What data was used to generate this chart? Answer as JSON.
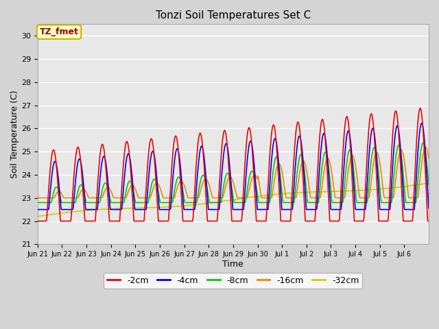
{
  "title": "Tonzi Soil Temperatures Set C",
  "xlabel": "Time",
  "ylabel": "Soil Temperature (C)",
  "ylim": [
    21.0,
    30.5
  ],
  "yticks": [
    21.0,
    22.0,
    23.0,
    24.0,
    25.0,
    26.0,
    27.0,
    28.0,
    29.0,
    30.0
  ],
  "annotation_text": "TZ_fmet",
  "annotation_bg": "#ffffcc",
  "annotation_border": "#bbbb00",
  "annotation_fg": "#990000",
  "legend_items": [
    "-2cm",
    "-4cm",
    "-8cm",
    "-16cm",
    "-32cm"
  ],
  "line_colors": [
    "#ee0000",
    "#0000ee",
    "#00cc00",
    "#ee8800",
    "#cccc00"
  ],
  "xtick_labels": [
    "Jun 21",
    "Jun 22",
    "Jun 23",
    "Jun 24",
    "Jun 25",
    "Jun 26",
    "Jun 27",
    "Jun 28",
    "Jun 29",
    "Jun 30",
    "Jul 1",
    "Jul 2",
    "Jul 3",
    "Jul 4",
    "Jul 5",
    "Jul 6"
  ],
  "n_points": 768
}
